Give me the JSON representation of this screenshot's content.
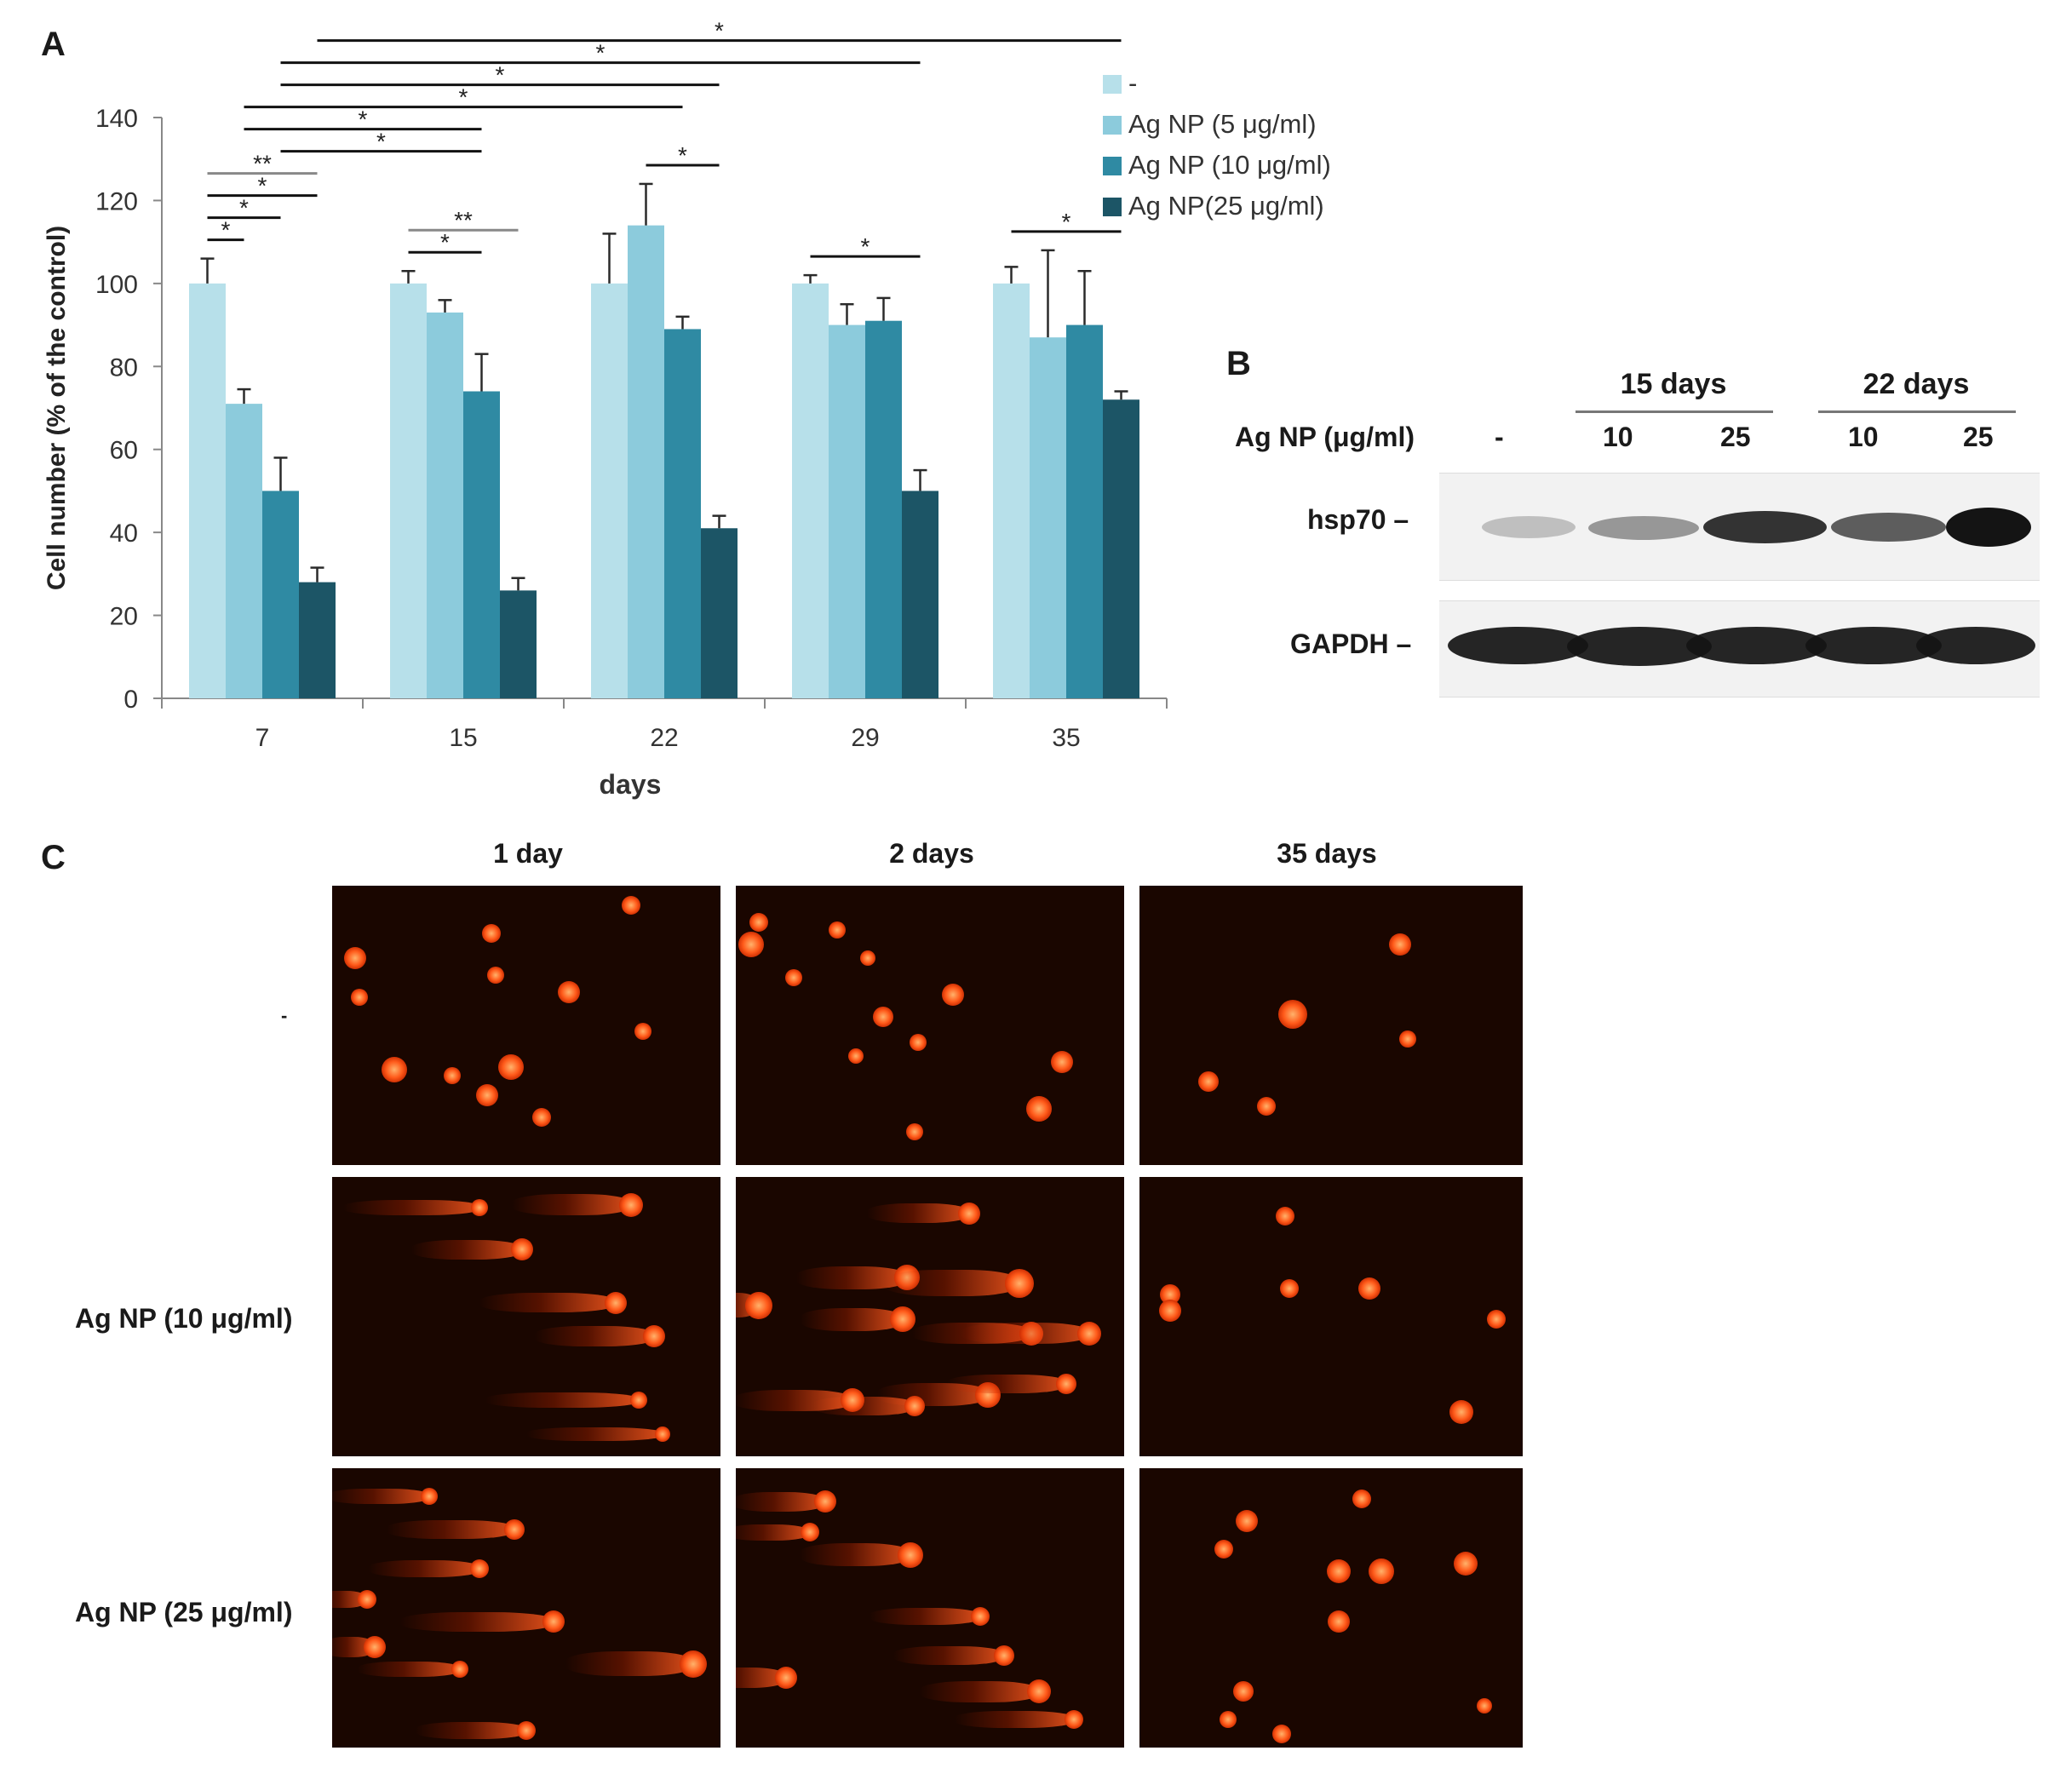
{
  "panels": {
    "a": "A",
    "b": "B",
    "c": "C"
  },
  "chart_data": {
    "type": "bar",
    "categories": [
      "7",
      "15",
      "22",
      "29",
      "35"
    ],
    "xlabel": "days",
    "ylabel": "Cell number (% of the control)",
    "ylim": [
      0,
      140
    ],
    "yticks": [
      0,
      20,
      40,
      60,
      80,
      100,
      120,
      140
    ],
    "grid": false,
    "legend_position": "top-right",
    "series": [
      {
        "name": "-",
        "color": "#b7e0ea",
        "values": [
          100,
          100,
          100,
          100,
          100
        ],
        "errors": [
          6,
          3,
          12,
          2,
          4
        ]
      },
      {
        "name": "Ag NP (5 μg/ml)",
        "color": "#8ccbdc",
        "values": [
          71,
          93,
          114,
          90,
          87
        ],
        "errors": [
          3.5,
          3,
          10,
          5,
          21
        ]
      },
      {
        "name": "Ag NP (10 μg/ml)",
        "color": "#2f8aa3",
        "values": [
          50,
          74,
          89,
          91,
          90
        ],
        "errors": [
          8,
          9,
          3,
          5.5,
          13
        ]
      },
      {
        "name": "Ag NP(25 μg/ml)",
        "color": "#1c5566",
        "values": [
          28,
          26,
          41,
          50,
          72
        ],
        "errors": [
          3.5,
          3,
          3,
          5,
          2
        ]
      }
    ],
    "significance": [
      {
        "from": [
          0,
          0
        ],
        "to": [
          0,
          1
        ],
        "label": "*"
      },
      {
        "from": [
          0,
          0
        ],
        "to": [
          0,
          2
        ],
        "label": "*"
      },
      {
        "from": [
          0,
          0
        ],
        "to": [
          0,
          3
        ],
        "label": "*"
      },
      {
        "from": [
          0,
          0
        ],
        "to": [
          0,
          3
        ],
        "label": "**"
      },
      {
        "from": [
          0,
          1
        ],
        "to": [
          1,
          2
        ],
        "label": "*"
      },
      {
        "from": [
          1,
          0
        ],
        "to": [
          1,
          2
        ],
        "label": "*"
      },
      {
        "from": [
          1,
          0
        ],
        "to": [
          1,
          3
        ],
        "label": "**"
      },
      {
        "from": [
          0,
          1
        ],
        "to": [
          2,
          2
        ],
        "label": "*"
      },
      {
        "from": [
          0,
          2
        ],
        "to": [
          1,
          2
        ],
        "label": "*"
      },
      {
        "from": [
          0,
          2
        ],
        "to": [
          2,
          3
        ],
        "label": "*"
      },
      {
        "from": [
          0,
          2
        ],
        "to": [
          3,
          3
        ],
        "label": "*"
      },
      {
        "from": [
          0,
          3
        ],
        "to": [
          4,
          3
        ],
        "label": "*"
      },
      {
        "from": [
          2,
          1
        ],
        "to": [
          2,
          3
        ],
        "label": "*"
      },
      {
        "from": [
          3,
          0
        ],
        "to": [
          3,
          3
        ],
        "label": "*"
      },
      {
        "from": [
          4,
          0
        ],
        "to": [
          4,
          3
        ],
        "label": "*"
      }
    ]
  },
  "western_blot": {
    "group_headers": [
      "15 days",
      "22 days"
    ],
    "row_label": "Ag NP (μg/ml)",
    "lanes": [
      "-",
      "10",
      "25",
      "10",
      "25"
    ],
    "blots": [
      {
        "label": "hsp70",
        "intensities": [
          0.25,
          0.45,
          0.9,
          0.7,
          1.0
        ]
      },
      {
        "label": "GAPDH",
        "intensities": [
          0.95,
          0.95,
          0.95,
          0.95,
          0.95
        ]
      }
    ]
  },
  "comet": {
    "columns": [
      "1 day",
      "2 days",
      "35 days"
    ],
    "rows": [
      "-",
      "Ag NP (10 μg/ml)",
      "Ag NP (25 μg/ml)"
    ]
  }
}
